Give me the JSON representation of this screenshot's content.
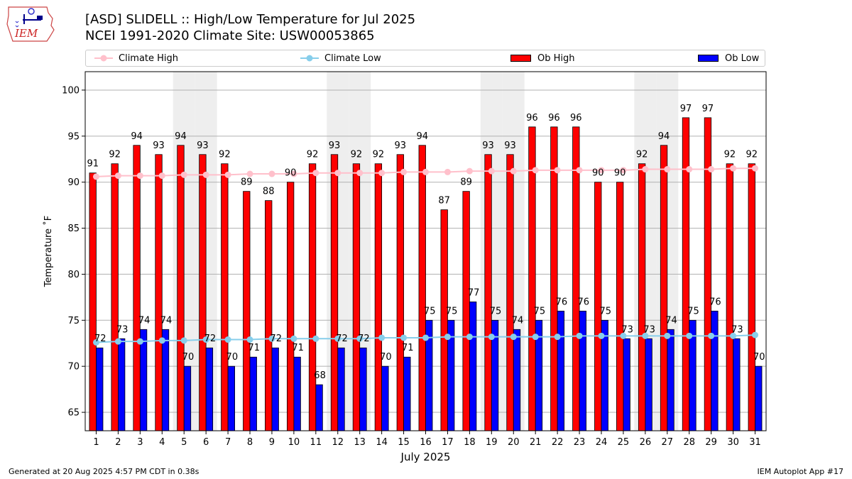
{
  "title_line1": "[ASD] SLIDELL :: High/Low Temperature for Jul 2025",
  "title_line2": "NCEI 1991-2020 Climate Site: USW00053865",
  "logo_text": "IEM",
  "footer_left": "Generated at 20 Aug 2025 4:57 PM CDT in 0.38s",
  "footer_right": "IEM Autoplot App #17",
  "legend": [
    {
      "label": "Climate High",
      "color": "#ffc0cb"
    },
    {
      "label": "Climate Low",
      "color": "#87ceeb"
    },
    {
      "label": "Ob High",
      "color": "#ff0000"
    },
    {
      "label": "Ob Low",
      "color": "#0000ff"
    }
  ],
  "chart_data": {
    "type": "bar",
    "xlabel": "July 2025",
    "ylabel": "Temperature ˚F",
    "ylim": [
      63,
      102
    ],
    "yticks": [
      65,
      70,
      75,
      80,
      85,
      90,
      95,
      100
    ],
    "grid": "horizontal",
    "categories": [
      "1",
      "2",
      "3",
      "4",
      "5",
      "6",
      "7",
      "8",
      "9",
      "10",
      "11",
      "12",
      "13",
      "14",
      "15",
      "16",
      "17",
      "18",
      "19",
      "20",
      "21",
      "22",
      "23",
      "24",
      "25",
      "26",
      "27",
      "28",
      "29",
      "30",
      "31"
    ],
    "weekend_days": [
      5,
      6,
      12,
      13,
      19,
      20,
      26,
      27
    ],
    "series": [
      {
        "name": "Ob High",
        "kind": "bar",
        "color": "#ff0000",
        "values": [
          91,
          92,
          94,
          93,
          94,
          93,
          92,
          89,
          88,
          90,
          92,
          93,
          92,
          92,
          93,
          94,
          87,
          89,
          93,
          93,
          96,
          96,
          96,
          90,
          90,
          92,
          94,
          97,
          97,
          92,
          92
        ]
      },
      {
        "name": "Ob Low",
        "kind": "bar",
        "color": "#0000ff",
        "values": [
          72,
          73,
          74,
          74,
          70,
          72,
          70,
          71,
          72,
          71,
          68,
          72,
          72,
          70,
          71,
          75,
          75,
          77,
          75,
          74,
          75,
          76,
          76,
          75,
          73,
          73,
          74,
          75,
          76,
          73,
          70
        ]
      },
      {
        "name": "Climate High",
        "kind": "line",
        "color": "#ffc0cb",
        "values": [
          90.6,
          90.7,
          90.7,
          90.7,
          90.8,
          90.8,
          90.8,
          90.9,
          90.9,
          90.9,
          91.0,
          91.0,
          91.0,
          91.0,
          91.1,
          91.1,
          91.1,
          91.2,
          91.2,
          91.2,
          91.3,
          91.3,
          91.3,
          91.3,
          91.3,
          91.4,
          91.4,
          91.4,
          91.4,
          91.5,
          91.5
        ]
      },
      {
        "name": "Climate Low",
        "kind": "line",
        "color": "#87ceeb",
        "values": [
          72.6,
          72.7,
          72.7,
          72.8,
          72.8,
          72.9,
          72.9,
          72.9,
          73.0,
          73.0,
          73.0,
          73.0,
          73.0,
          73.1,
          73.1,
          73.1,
          73.2,
          73.2,
          73.2,
          73.2,
          73.2,
          73.2,
          73.3,
          73.3,
          73.3,
          73.3,
          73.3,
          73.3,
          73.3,
          73.3,
          73.4
        ]
      }
    ]
  }
}
